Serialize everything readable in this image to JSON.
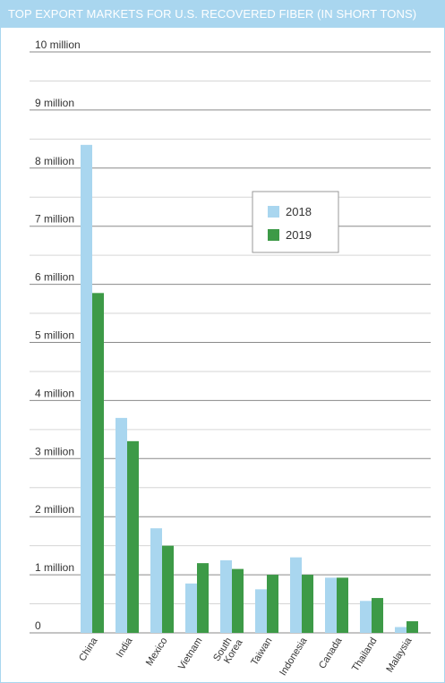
{
  "chart_data": {
    "type": "bar",
    "title": "TOP EXPORT MARKETS FOR U.S. RECOVERED FIBER (IN SHORT TONS)",
    "categories": [
      "China",
      "India",
      "Mexico",
      "Vietnam",
      "South Korea",
      "Taiwan",
      "Indonesia",
      "Canada",
      "Thailand",
      "Malaysia"
    ],
    "category_lines": [
      [
        "China"
      ],
      [
        "India"
      ],
      [
        "Mexico"
      ],
      [
        "Vietnam"
      ],
      [
        "South",
        "Korea"
      ],
      [
        "Taiwan"
      ],
      [
        "Indonesia"
      ],
      [
        "Canada"
      ],
      [
        "Thailand"
      ],
      [
        "Malaysia"
      ]
    ],
    "series": [
      {
        "name": "2018",
        "color": "#a9d6ef",
        "values": [
          8400000,
          3700000,
          1800000,
          850000,
          1250000,
          750000,
          1300000,
          950000,
          550000,
          100000
        ]
      },
      {
        "name": "2019",
        "color": "#3d9a47",
        "values": [
          5850000,
          3300000,
          1500000,
          1200000,
          1100000,
          1000000,
          1000000,
          950000,
          600000,
          200000
        ]
      }
    ],
    "y_ticks": [
      {
        "value": 0,
        "label": "0"
      },
      {
        "value": 1000000,
        "label": "1 million"
      },
      {
        "value": 2000000,
        "label": "2 million"
      },
      {
        "value": 3000000,
        "label": "3 million"
      },
      {
        "value": 4000000,
        "label": "4 million"
      },
      {
        "value": 5000000,
        "label": "5 million"
      },
      {
        "value": 6000000,
        "label": "6 million"
      },
      {
        "value": 7000000,
        "label": "7 million"
      },
      {
        "value": 8000000,
        "label": "8 million"
      },
      {
        "value": 9000000,
        "label": "9 million"
      },
      {
        "value": 10000000,
        "label": "10 million"
      }
    ],
    "ylim": [
      0,
      10000000
    ],
    "grid": true,
    "legend_position": "top-right"
  }
}
